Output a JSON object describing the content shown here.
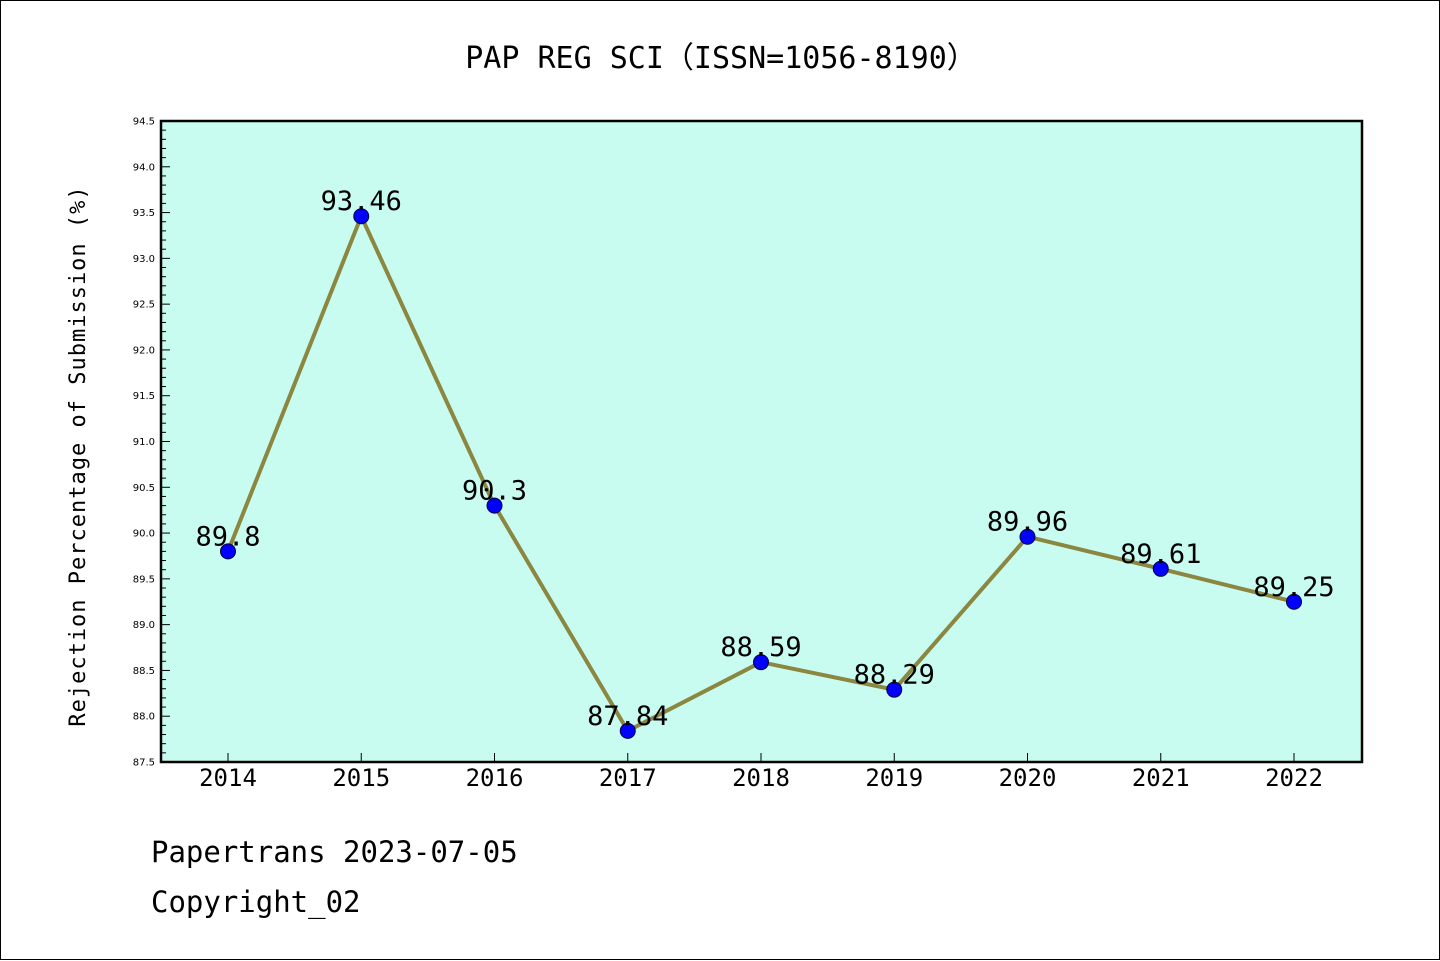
{
  "chart_data": {
    "type": "line",
    "title": "PAP REG SCI（ISSN=1056-8190）",
    "ylabel": "Rejection Percentage of Submission (%)",
    "xlabel": "",
    "categories": [
      "2014",
      "2015",
      "2016",
      "2017",
      "2018",
      "2019",
      "2020",
      "2021",
      "2022"
    ],
    "series": [
      {
        "values": [
          89.8,
          93.46,
          90.3,
          87.84,
          88.59,
          88.29,
          89.96,
          89.61,
          89.25
        ],
        "labels": [
          "89.8",
          "93.46",
          "90.3",
          "87.84",
          "88.59",
          "88.29",
          "89.96",
          "89.61",
          "89.25"
        ]
      }
    ],
    "ylim": [
      87.5,
      94.5
    ],
    "yticks": [
      "87.5",
      "88.0",
      "88.5",
      "89.0",
      "89.5",
      "90.0",
      "90.5",
      "91.0",
      "91.5",
      "92.0",
      "92.5",
      "93.0",
      "93.5",
      "94.0",
      "94.5"
    ],
    "grid": false,
    "colors": {
      "plot_background": "#c8fcf0",
      "line": "#8b8640",
      "marker": "#0000ff"
    }
  },
  "footer": {
    "line1": "Papertrans 2023-07-05",
    "line2": "Copyright_02"
  }
}
